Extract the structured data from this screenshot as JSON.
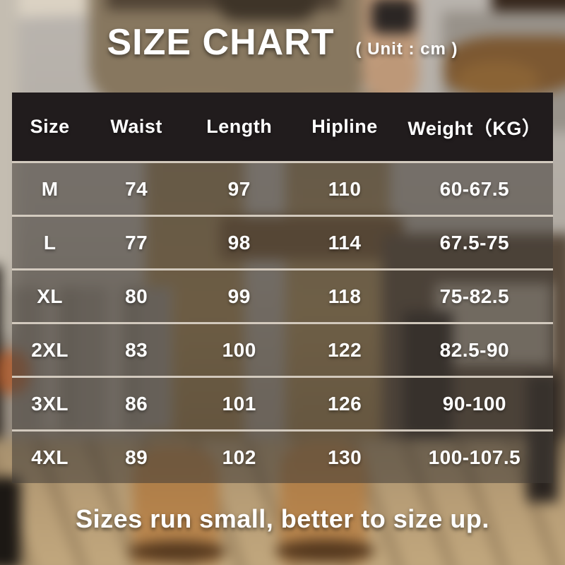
{
  "title": "SIZE CHART",
  "unit_label": "( Unit : cm )",
  "footer_note": "Sizes run small, better to size up.",
  "colors": {
    "header_bg": "#211c1d",
    "divider": "#dbd3c7",
    "text": "#ffffff",
    "row_overlay": "rgba(66,60,55,0.55)",
    "photo_khaki": "#a08455",
    "photo_boot_tan": "#bd8950"
  },
  "chart_data": {
    "type": "table",
    "title": "SIZE CHART",
    "subtitle": "( Unit : cm )",
    "unit": "cm",
    "columns": [
      "Size",
      "Waist",
      "Length",
      "Hipline",
      "Weight（KG）"
    ],
    "rows": [
      [
        "M",
        "74",
        "97",
        "110",
        "60-67.5"
      ],
      [
        "L",
        "77",
        "98",
        "114",
        "67.5-75"
      ],
      [
        "XL",
        "80",
        "99",
        "118",
        "75-82.5"
      ],
      [
        "2XL",
        "83",
        "100",
        "122",
        "82.5-90"
      ],
      [
        "3XL",
        "86",
        "101",
        "126",
        "90-100"
      ],
      [
        "4XL",
        "89",
        "102",
        "130",
        "100-107.5"
      ]
    ],
    "note": "Sizes run small, better to size up."
  }
}
